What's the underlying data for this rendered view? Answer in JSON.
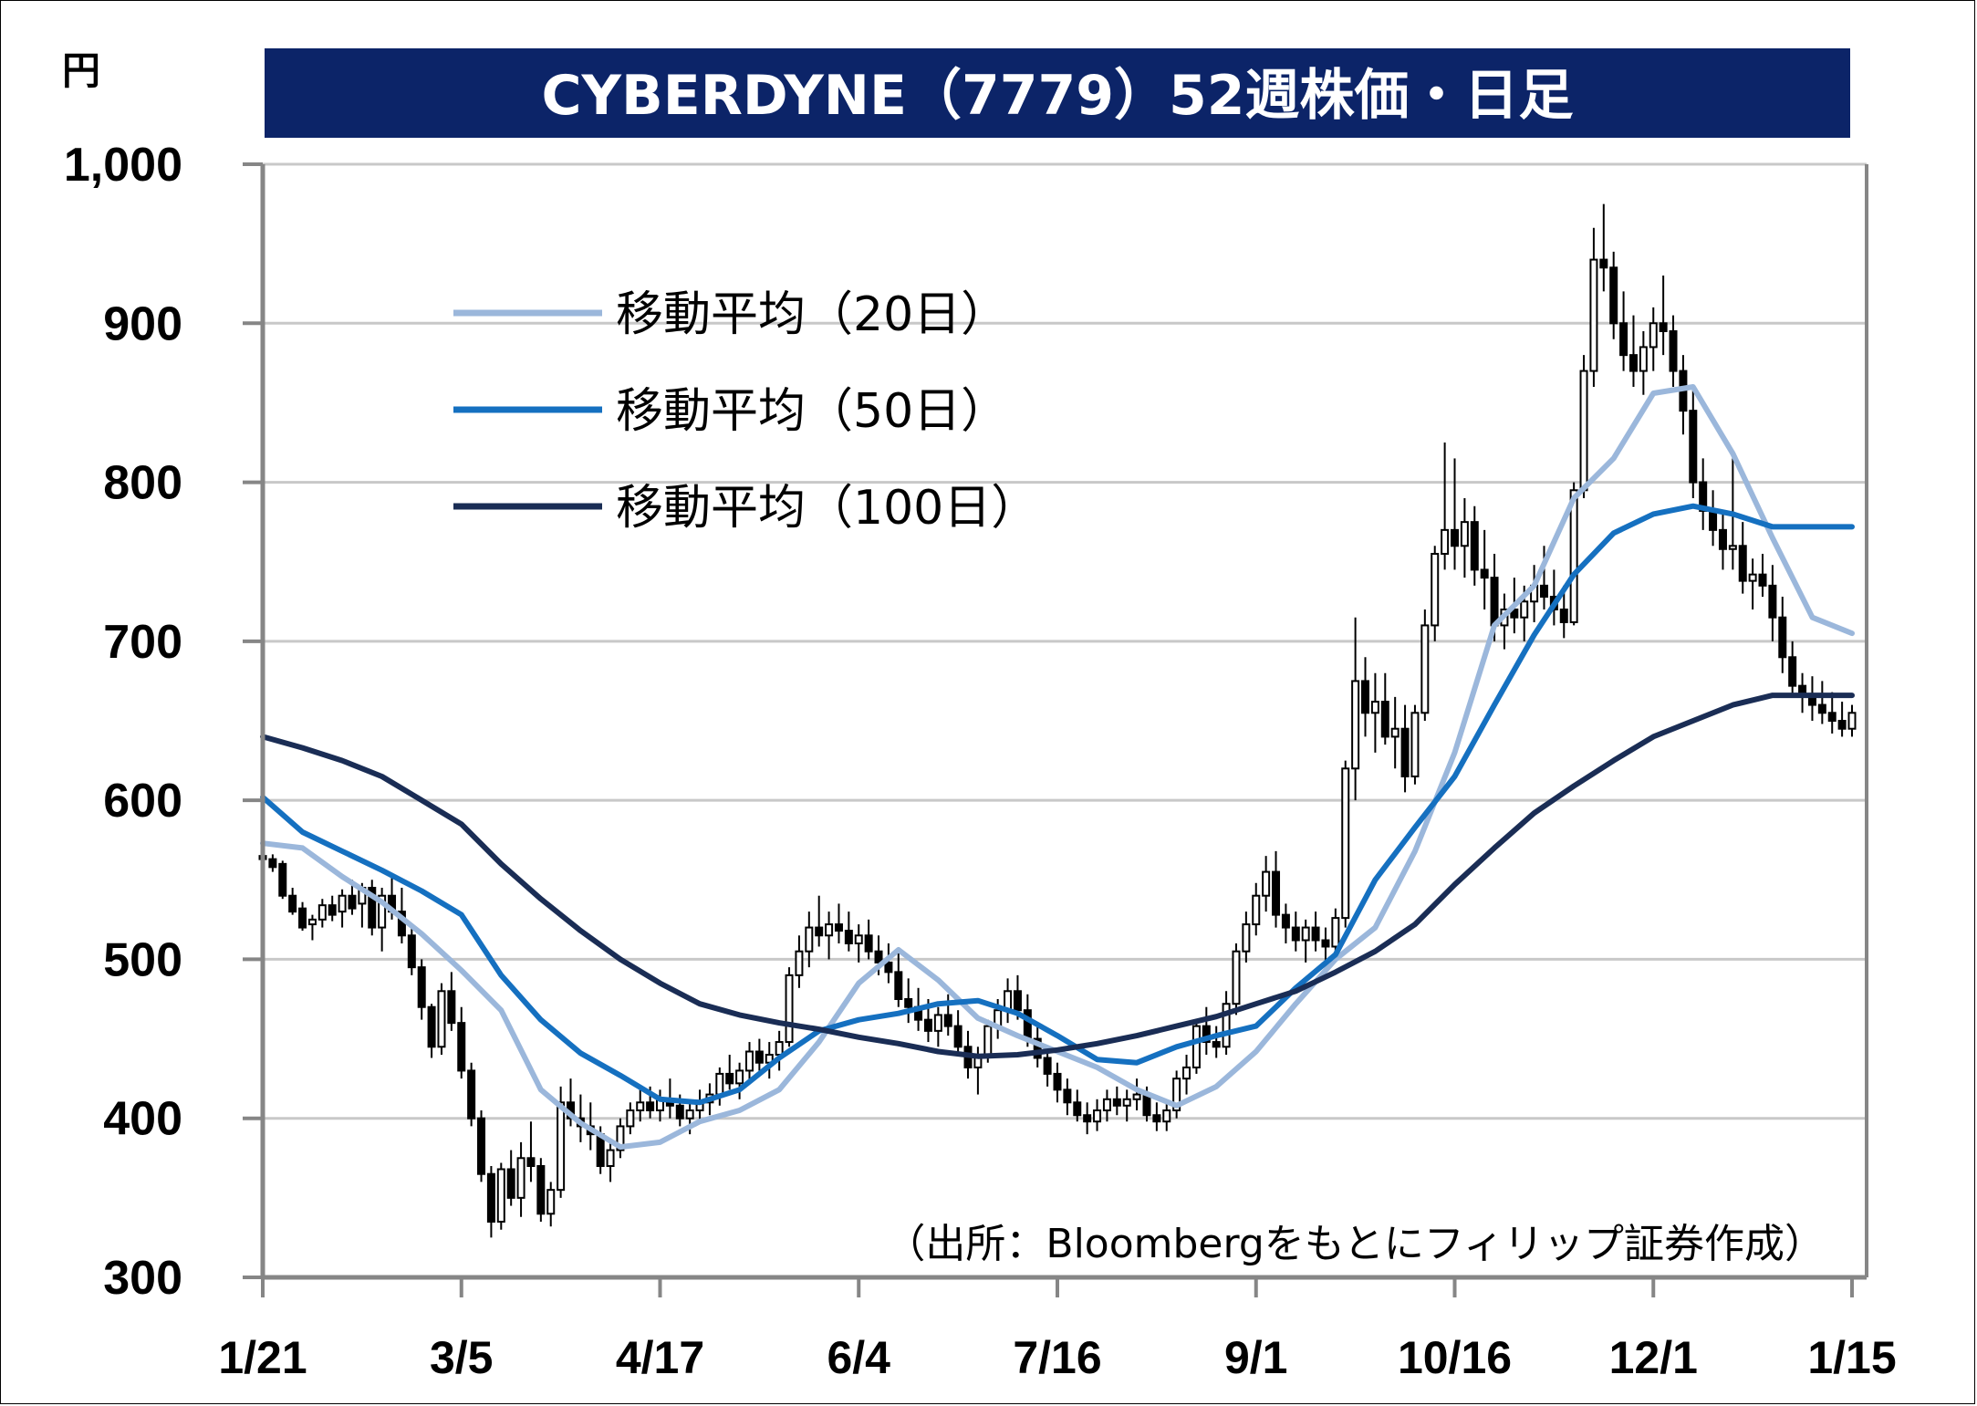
{
  "chart_data": {
    "type": "candlestick",
    "title": "CYBERDYNE（7779）52週株価・日足",
    "unit_label": "円",
    "ylim": [
      300,
      1000
    ],
    "y_ticks": [
      "300",
      "400",
      "500",
      "600",
      "700",
      "800",
      "900",
      "1,000"
    ],
    "x_ticks": [
      "1/21",
      "3/5",
      "4/17",
      "6/4",
      "7/16",
      "9/1",
      "10/16",
      "12/1",
      "1/15"
    ],
    "grid": true,
    "legend_position": "top-left",
    "source_note": "（出所：Bloombergをもとにフィリップ証券作成）",
    "colors": {
      "title_bg": "#0c2468",
      "ma20": "#9bb7db",
      "ma50": "#1570c0",
      "ma100": "#1a2d55",
      "candle": "#000000",
      "grid": "#c8c8c8"
    },
    "series": [
      {
        "name": "移動平均（20日）",
        "color": "#9bb7db",
        "x": [
          0,
          0.2,
          0.4,
          0.6,
          0.8,
          1.0,
          1.2,
          1.4,
          1.6,
          1.8,
          2.0,
          2.2,
          2.4,
          2.6,
          2.8,
          3.0,
          3.2,
          3.4,
          3.6,
          3.8,
          4.0,
          4.2,
          4.4,
          4.6,
          4.8,
          5.0,
          5.2,
          5.4,
          5.6,
          5.8,
          6.0,
          6.2,
          6.4,
          6.6,
          6.8,
          7.0,
          7.2,
          7.4,
          7.6,
          7.8,
          8.0
        ],
        "values": [
          573,
          570,
          552,
          536,
          516,
          493,
          468,
          418,
          397,
          382,
          385,
          398,
          405,
          418,
          448,
          485,
          506,
          487,
          463,
          452,
          442,
          432,
          418,
          408,
          420,
          442,
          472,
          500,
          520,
          568,
          630,
          710,
          735,
          790,
          815,
          856,
          860,
          818,
          765,
          715,
          705
        ]
      },
      {
        "name": "移動平均（50日）",
        "color": "#1570c0",
        "x": [
          0,
          0.2,
          0.4,
          0.6,
          0.8,
          1.0,
          1.2,
          1.4,
          1.6,
          1.8,
          2.0,
          2.2,
          2.4,
          2.6,
          2.8,
          3.0,
          3.2,
          3.4,
          3.6,
          3.8,
          4.0,
          4.2,
          4.4,
          4.6,
          4.8,
          5.0,
          5.2,
          5.4,
          5.6,
          5.8,
          6.0,
          6.2,
          6.4,
          6.6,
          6.8,
          7.0,
          7.2,
          7.4,
          7.6,
          7.8,
          8.0
        ],
        "values": [
          602,
          580,
          568,
          556,
          543,
          528,
          490,
          462,
          441,
          427,
          412,
          410,
          418,
          438,
          455,
          462,
          466,
          472,
          474,
          466,
          452,
          437,
          435,
          445,
          452,
          458,
          482,
          503,
          550,
          583,
          615,
          660,
          704,
          742,
          768,
          780,
          785,
          780,
          772,
          772,
          772
        ]
      },
      {
        "name": "移動平均（100日）",
        "color": "#1a2d55",
        "x": [
          0,
          0.2,
          0.4,
          0.6,
          0.8,
          1.0,
          1.2,
          1.4,
          1.6,
          1.8,
          2.0,
          2.2,
          2.4,
          2.6,
          2.8,
          3.0,
          3.2,
          3.4,
          3.6,
          3.8,
          4.0,
          4.2,
          4.4,
          4.6,
          4.8,
          5.0,
          5.2,
          5.4,
          5.6,
          5.8,
          6.0,
          6.2,
          6.4,
          6.6,
          6.8,
          7.0,
          7.2,
          7.4,
          7.6,
          7.8,
          8.0
        ],
        "values": [
          640,
          633,
          625,
          615,
          600,
          585,
          560,
          538,
          518,
          500,
          485,
          472,
          465,
          460,
          456,
          451,
          447,
          442,
          439,
          440,
          443,
          447,
          452,
          458,
          464,
          472,
          480,
          492,
          505,
          522,
          547,
          570,
          592,
          609,
          625,
          640,
          650,
          660,
          666,
          666,
          666
        ]
      }
    ],
    "candles": [
      [
        0.0,
        565,
        568,
        560,
        563
      ],
      [
        0.05,
        563,
        566,
        555,
        558
      ],
      [
        0.1,
        560,
        562,
        538,
        540
      ],
      [
        0.15,
        540,
        545,
        528,
        530
      ],
      [
        0.2,
        532,
        536,
        518,
        520
      ],
      [
        0.25,
        522,
        528,
        512,
        525
      ],
      [
        0.3,
        525,
        538,
        520,
        534
      ],
      [
        0.35,
        534,
        540,
        524,
        528
      ],
      [
        0.4,
        530,
        544,
        520,
        540
      ],
      [
        0.45,
        540,
        550,
        528,
        532
      ],
      [
        0.5,
        535,
        548,
        520,
        545
      ],
      [
        0.55,
        545,
        550,
        515,
        520
      ],
      [
        0.6,
        520,
        545,
        505,
        540
      ],
      [
        0.65,
        540,
        552,
        525,
        530
      ],
      [
        0.7,
        530,
        545,
        510,
        515
      ],
      [
        0.75,
        515,
        520,
        490,
        495
      ],
      [
        0.8,
        495,
        500,
        462,
        470
      ],
      [
        0.85,
        470,
        472,
        438,
        445
      ],
      [
        0.9,
        445,
        485,
        440,
        480
      ],
      [
        0.95,
        480,
        492,
        455,
        460
      ],
      [
        1.0,
        460,
        470,
        425,
        430
      ],
      [
        1.05,
        430,
        435,
        395,
        400
      ],
      [
        1.1,
        400,
        405,
        360,
        365
      ],
      [
        1.15,
        365,
        370,
        325,
        335
      ],
      [
        1.2,
        335,
        372,
        330,
        368
      ],
      [
        1.25,
        368,
        380,
        345,
        350
      ],
      [
        1.3,
        350,
        385,
        338,
        375
      ],
      [
        1.35,
        375,
        398,
        360,
        370
      ],
      [
        1.4,
        370,
        375,
        335,
        340
      ],
      [
        1.45,
        340,
        360,
        332,
        355
      ],
      [
        1.5,
        355,
        420,
        350,
        410
      ],
      [
        1.55,
        410,
        425,
        395,
        400
      ],
      [
        1.6,
        400,
        415,
        385,
        395
      ],
      [
        1.65,
        395,
        410,
        380,
        390
      ],
      [
        1.7,
        390,
        395,
        365,
        370
      ],
      [
        1.75,
        370,
        385,
        360,
        380
      ],
      [
        1.8,
        380,
        400,
        375,
        395
      ],
      [
        1.85,
        395,
        410,
        390,
        405
      ],
      [
        1.9,
        405,
        418,
        398,
        410
      ],
      [
        1.95,
        410,
        420,
        400,
        405
      ],
      [
        2.0,
        405,
        418,
        398,
        412
      ],
      [
        2.05,
        412,
        425,
        400,
        408
      ],
      [
        2.1,
        408,
        415,
        395,
        400
      ],
      [
        2.15,
        400,
        410,
        390,
        405
      ],
      [
        2.2,
        405,
        418,
        398,
        410
      ],
      [
        2.25,
        410,
        422,
        402,
        415
      ],
      [
        2.3,
        415,
        432,
        408,
        428
      ],
      [
        2.35,
        428,
        440,
        418,
        422
      ],
      [
        2.4,
        422,
        435,
        412,
        430
      ],
      [
        2.45,
        430,
        448,
        422,
        442
      ],
      [
        2.5,
        442,
        450,
        430,
        435
      ],
      [
        2.55,
        435,
        448,
        425,
        440
      ],
      [
        2.6,
        440,
        455,
        430,
        448
      ],
      [
        2.65,
        448,
        495,
        445,
        490
      ],
      [
        2.7,
        490,
        515,
        482,
        505
      ],
      [
        2.75,
        505,
        530,
        495,
        520
      ],
      [
        2.8,
        520,
        540,
        508,
        515
      ],
      [
        2.85,
        515,
        530,
        500,
        522
      ],
      [
        2.9,
        522,
        535,
        510,
        518
      ],
      [
        2.95,
        518,
        530,
        505,
        510
      ],
      [
        3.0,
        510,
        522,
        498,
        515
      ],
      [
        3.05,
        515,
        525,
        500,
        505
      ],
      [
        3.1,
        505,
        515,
        490,
        498
      ],
      [
        3.15,
        498,
        510,
        485,
        492
      ],
      [
        3.2,
        492,
        505,
        470,
        475
      ],
      [
        3.25,
        475,
        488,
        460,
        470
      ],
      [
        3.3,
        470,
        482,
        455,
        462
      ],
      [
        3.35,
        462,
        475,
        448,
        455
      ],
      [
        3.4,
        455,
        470,
        445,
        465
      ],
      [
        3.45,
        465,
        478,
        452,
        458
      ],
      [
        3.5,
        458,
        468,
        440,
        445
      ],
      [
        3.55,
        445,
        455,
        425,
        432
      ],
      [
        3.6,
        432,
        445,
        415,
        440
      ],
      [
        3.65,
        440,
        462,
        435,
        458
      ],
      [
        3.7,
        458,
        475,
        450,
        468
      ],
      [
        3.75,
        468,
        488,
        460,
        480
      ],
      [
        3.8,
        480,
        490,
        462,
        468
      ],
      [
        3.85,
        468,
        478,
        445,
        450
      ],
      [
        3.9,
        450,
        458,
        432,
        438
      ],
      [
        3.95,
        438,
        445,
        420,
        428
      ],
      [
        4.0,
        428,
        435,
        410,
        418
      ],
      [
        4.05,
        418,
        425,
        402,
        410
      ],
      [
        4.1,
        410,
        418,
        398,
        402
      ],
      [
        4.15,
        402,
        410,
        390,
        398
      ],
      [
        4.2,
        398,
        412,
        392,
        405
      ],
      [
        4.25,
        405,
        418,
        398,
        412
      ],
      [
        4.3,
        412,
        420,
        402,
        408
      ],
      [
        4.35,
        408,
        418,
        398,
        412
      ],
      [
        4.4,
        412,
        425,
        405,
        415
      ],
      [
        4.45,
        415,
        420,
        398,
        402
      ],
      [
        4.5,
        402,
        410,
        392,
        398
      ],
      [
        4.55,
        398,
        410,
        392,
        405
      ],
      [
        4.6,
        405,
        430,
        400,
        425
      ],
      [
        4.65,
        425,
        440,
        415,
        432
      ],
      [
        4.7,
        432,
        462,
        428,
        458
      ],
      [
        4.75,
        458,
        470,
        440,
        448
      ],
      [
        4.8,
        448,
        458,
        438,
        445
      ],
      [
        4.85,
        445,
        480,
        440,
        472
      ],
      [
        4.9,
        472,
        510,
        465,
        505
      ],
      [
        4.95,
        505,
        530,
        498,
        522
      ],
      [
        5.0,
        522,
        548,
        515,
        540
      ],
      [
        5.05,
        540,
        565,
        530,
        555
      ],
      [
        5.1,
        555,
        568,
        520,
        528
      ],
      [
        5.15,
        528,
        535,
        510,
        520
      ],
      [
        5.2,
        520,
        530,
        505,
        512
      ],
      [
        5.25,
        512,
        525,
        498,
        520
      ],
      [
        5.3,
        520,
        530,
        505,
        512
      ],
      [
        5.35,
        512,
        520,
        498,
        508
      ],
      [
        5.4,
        508,
        532,
        502,
        526
      ],
      [
        5.45,
        526,
        625,
        520,
        620
      ],
      [
        5.5,
        620,
        715,
        600,
        675
      ],
      [
        5.55,
        675,
        690,
        640,
        655
      ],
      [
        5.6,
        655,
        680,
        630,
        662
      ],
      [
        5.65,
        662,
        680,
        635,
        640
      ],
      [
        5.7,
        640,
        665,
        620,
        645
      ],
      [
        5.75,
        645,
        660,
        605,
        615
      ],
      [
        5.8,
        615,
        660,
        610,
        655
      ],
      [
        5.85,
        655,
        720,
        650,
        710
      ],
      [
        5.9,
        710,
        760,
        700,
        755
      ],
      [
        5.95,
        755,
        825,
        745,
        770
      ],
      [
        6.0,
        770,
        815,
        745,
        760
      ],
      [
        6.05,
        760,
        790,
        740,
        775
      ],
      [
        6.1,
        775,
        785,
        735,
        745
      ],
      [
        6.15,
        745,
        770,
        720,
        740
      ],
      [
        6.2,
        740,
        755,
        700,
        710
      ],
      [
        6.25,
        710,
        730,
        695,
        720
      ],
      [
        6.3,
        720,
        740,
        705,
        715
      ],
      [
        6.35,
        715,
        735,
        700,
        725
      ],
      [
        6.4,
        725,
        748,
        712,
        735
      ],
      [
        6.45,
        735,
        760,
        720,
        728
      ],
      [
        6.5,
        728,
        745,
        710,
        720
      ],
      [
        6.55,
        720,
        735,
        702,
        712
      ],
      [
        6.6,
        712,
        800,
        710,
        795
      ],
      [
        6.65,
        795,
        880,
        790,
        870
      ],
      [
        6.7,
        870,
        960,
        860,
        940
      ],
      [
        6.75,
        940,
        975,
        920,
        935
      ],
      [
        6.8,
        935,
        945,
        890,
        900
      ],
      [
        6.85,
        900,
        920,
        870,
        880
      ],
      [
        6.9,
        880,
        905,
        860,
        870
      ],
      [
        6.95,
        870,
        895,
        855,
        885
      ],
      [
        7.0,
        885,
        910,
        870,
        900
      ],
      [
        7.05,
        900,
        930,
        880,
        895
      ],
      [
        7.1,
        895,
        905,
        860,
        870
      ],
      [
        7.15,
        870,
        880,
        830,
        845
      ],
      [
        7.2,
        845,
        860,
        790,
        800
      ],
      [
        7.25,
        800,
        815,
        770,
        782
      ],
      [
        7.3,
        782,
        795,
        760,
        770
      ],
      [
        7.35,
        770,
        780,
        745,
        758
      ],
      [
        7.4,
        758,
        815,
        745,
        760
      ],
      [
        7.45,
        760,
        775,
        730,
        738
      ],
      [
        7.5,
        738,
        752,
        720,
        742
      ],
      [
        7.55,
        742,
        755,
        728,
        735
      ],
      [
        7.6,
        735,
        748,
        700,
        715
      ],
      [
        7.65,
        715,
        728,
        680,
        690
      ],
      [
        7.7,
        690,
        700,
        665,
        672
      ],
      [
        7.75,
        672,
        680,
        655,
        665
      ],
      [
        7.8,
        665,
        678,
        650,
        660
      ],
      [
        7.85,
        660,
        675,
        648,
        655
      ],
      [
        7.9,
        655,
        668,
        642,
        650
      ],
      [
        7.95,
        650,
        662,
        640,
        645
      ],
      [
        8.0,
        645,
        660,
        640,
        655
      ]
    ]
  }
}
